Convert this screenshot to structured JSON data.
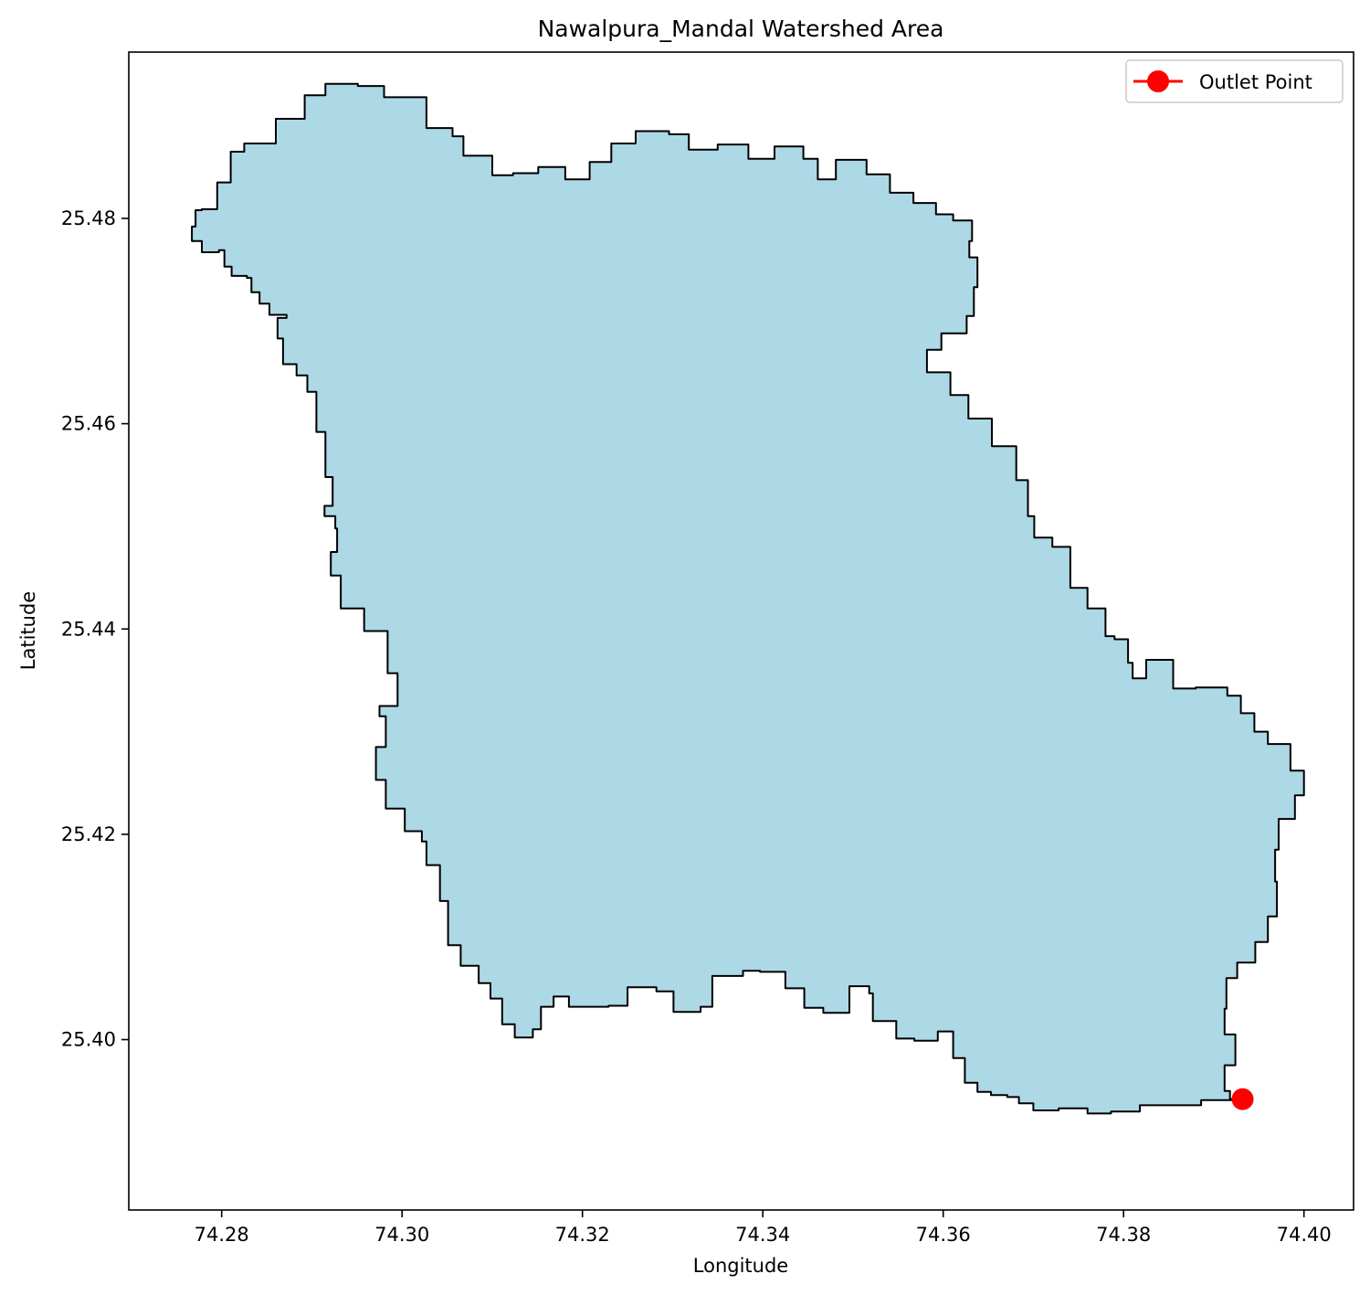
{
  "title": "Nawalpura_Mandal Watershed Area",
  "xlabel": "Longitude",
  "ylabel": "Latitude",
  "legend": {
    "label": "Outlet Point",
    "placement": "top-right"
  },
  "colors": {
    "fill": "#add8e6",
    "edge": "#000000",
    "outlet": "#ff0000"
  },
  "chart_data": {
    "type": "map",
    "title": "Nawalpura_Mandal Watershed Area",
    "xlabel": "Longitude",
    "ylabel": "Latitude",
    "xlim": [
      74.2697,
      74.4055
    ],
    "ylim": [
      25.3834,
      25.4962
    ],
    "xticks": [
      74.28,
      74.3,
      74.32,
      74.34,
      74.36,
      74.38,
      74.4
    ],
    "xtick_labels": [
      "74.28",
      "74.30",
      "74.32",
      "74.34",
      "74.36",
      "74.38",
      "74.40"
    ],
    "yticks": [
      25.4,
      25.42,
      25.44,
      25.46,
      25.48
    ],
    "ytick_labels": [
      "25.40",
      "25.42",
      "25.44",
      "25.46",
      "25.48"
    ],
    "outlet_point": {
      "lon": 74.3932,
      "lat": 25.3942,
      "label": "Outlet Point"
    },
    "boundary": [
      [
        74.2767,
        25.4778
      ],
      [
        74.2778,
        25.4767
      ],
      [
        74.2797,
        25.4769
      ],
      [
        74.2803,
        25.4753
      ],
      [
        74.2811,
        25.4744
      ],
      [
        74.2828,
        25.4742
      ],
      [
        74.2833,
        25.4728
      ],
      [
        74.2842,
        25.4717
      ],
      [
        74.2853,
        25.4706
      ],
      [
        74.2872,
        25.4703
      ],
      [
        74.2862,
        25.4683
      ],
      [
        74.2868,
        25.4658
      ],
      [
        74.2883,
        25.4647
      ],
      [
        74.2895,
        25.4631
      ],
      [
        74.2905,
        25.4592
      ],
      [
        74.2915,
        25.4548
      ],
      [
        74.2923,
        25.452
      ],
      [
        74.2914,
        25.451
      ],
      [
        74.2926,
        25.4498
      ],
      [
        74.2928,
        25.4475
      ],
      [
        74.2921,
        25.4452
      ],
      [
        74.2932,
        25.442
      ],
      [
        74.2958,
        25.4398
      ],
      [
        74.2984,
        25.4357
      ],
      [
        74.2995,
        25.4325
      ],
      [
        74.2975,
        25.4315
      ],
      [
        74.2982,
        25.4285
      ],
      [
        74.2971,
        25.4253
      ],
      [
        74.2982,
        25.4225
      ],
      [
        74.3003,
        25.4203
      ],
      [
        74.3022,
        25.4193
      ],
      [
        74.3027,
        25.417
      ],
      [
        74.3042,
        25.4135
      ],
      [
        74.3051,
        25.4092
      ],
      [
        74.3065,
        25.4072
      ],
      [
        74.3085,
        25.4055
      ],
      [
        74.3098,
        25.404
      ],
      [
        74.3111,
        25.4015
      ],
      [
        74.3125,
        25.4002
      ],
      [
        74.3145,
        25.401
      ],
      [
        74.3154,
        25.4032
      ],
      [
        74.3168,
        25.4042
      ],
      [
        74.3185,
        25.4032
      ],
      [
        74.3229,
        25.4033
      ],
      [
        74.325,
        25.4051
      ],
      [
        74.3282,
        25.4047
      ],
      [
        74.3301,
        25.4027
      ],
      [
        74.3331,
        25.4032
      ],
      [
        74.3344,
        25.4062
      ],
      [
        74.3378,
        25.4067
      ],
      [
        74.3397,
        25.4066
      ],
      [
        74.3425,
        25.405
      ],
      [
        74.3446,
        25.4031
      ],
      [
        74.3467,
        25.4026
      ],
      [
        74.3496,
        25.4052
      ],
      [
        74.3518,
        25.4045
      ],
      [
        74.3522,
        25.4018
      ],
      [
        74.3548,
        25.4001
      ],
      [
        74.3568,
        25.3999
      ],
      [
        74.3594,
        25.4008
      ],
      [
        74.3611,
        25.3982
      ],
      [
        74.3624,
        25.3958
      ],
      [
        74.3638,
        25.3949
      ],
      [
        74.3653,
        25.3946
      ],
      [
        74.3671,
        25.3944
      ],
      [
        74.3684,
        25.3938
      ],
      [
        74.37,
        25.3931
      ],
      [
        74.3728,
        25.3933
      ],
      [
        74.376,
        25.3928
      ],
      [
        74.3786,
        25.393
      ],
      [
        74.3818,
        25.3936
      ],
      [
        74.3853,
        25.3936
      ],
      [
        74.3886,
        25.3941
      ],
      [
        74.3932,
        25.3942
      ],
      [
        74.3918,
        25.395
      ],
      [
        74.3912,
        25.3975
      ],
      [
        74.3924,
        25.4005
      ],
      [
        74.3912,
        25.403
      ],
      [
        74.3914,
        25.406
      ],
      [
        74.3926,
        25.4075
      ],
      [
        74.3946,
        25.4095
      ],
      [
        74.396,
        25.412
      ],
      [
        74.397,
        25.4154
      ],
      [
        74.3968,
        25.4185
      ],
      [
        74.3972,
        25.4215
      ],
      [
        74.399,
        25.4238
      ],
      [
        74.4,
        25.4262
      ],
      [
        74.3985,
        25.4288
      ],
      [
        74.396,
        25.43
      ],
      [
        74.3945,
        25.4318
      ],
      [
        74.393,
        25.4335
      ],
      [
        74.3915,
        25.4343
      ],
      [
        74.388,
        25.4342
      ],
      [
        74.3855,
        25.437
      ],
      [
        74.3825,
        25.4352
      ],
      [
        74.381,
        25.4367
      ],
      [
        74.3805,
        25.439
      ],
      [
        74.379,
        25.4393
      ],
      [
        74.378,
        25.442
      ],
      [
        74.376,
        25.444
      ],
      [
        74.3741,
        25.448
      ],
      [
        74.3721,
        25.4489
      ],
      [
        74.3701,
        25.451
      ],
      [
        74.3694,
        25.4545
      ],
      [
        74.3681,
        25.4578
      ],
      [
        74.3654,
        25.4605
      ],
      [
        74.3628,
        25.4628
      ],
      [
        74.3608,
        25.465
      ],
      [
        74.3582,
        25.4672
      ],
      [
        74.3598,
        25.4688
      ],
      [
        74.3626,
        25.4705
      ],
      [
        74.3634,
        25.4733
      ],
      [
        74.3638,
        25.4762
      ],
      [
        74.3629,
        25.4778
      ],
      [
        74.3632,
        25.4798
      ],
      [
        74.3611,
        25.4804
      ],
      [
        74.3592,
        25.4815
      ],
      [
        74.3567,
        25.4825
      ],
      [
        74.3541,
        25.4843
      ],
      [
        74.3515,
        25.4857
      ],
      [
        74.3481,
        25.4838
      ],
      [
        74.3461,
        25.4858
      ],
      [
        74.3445,
        25.487
      ],
      [
        74.3413,
        25.4858
      ],
      [
        74.3384,
        25.4872
      ],
      [
        74.335,
        25.4867
      ],
      [
        74.3318,
        25.4882
      ],
      [
        74.3296,
        25.4885
      ],
      [
        74.3259,
        25.4873
      ],
      [
        74.3232,
        25.4855
      ],
      [
        74.3208,
        25.4838
      ],
      [
        74.3181,
        25.485
      ],
      [
        74.3151,
        25.4844
      ],
      [
        74.3123,
        25.4842
      ],
      [
        74.31,
        25.4861
      ],
      [
        74.3068,
        25.488
      ],
      [
        74.3056,
        25.4888
      ],
      [
        74.3027,
        25.4918
      ],
      [
        74.298,
        25.4929
      ],
      [
        74.2951,
        25.4931
      ],
      [
        74.2915,
        25.492
      ],
      [
        74.2892,
        25.4897
      ],
      [
        74.286,
        25.4873
      ],
      [
        74.2825,
        25.4865
      ],
      [
        74.281,
        25.4835
      ],
      [
        74.2795,
        25.4809
      ],
      [
        74.2778,
        25.4808
      ],
      [
        74.2771,
        25.4792
      ]
    ]
  }
}
